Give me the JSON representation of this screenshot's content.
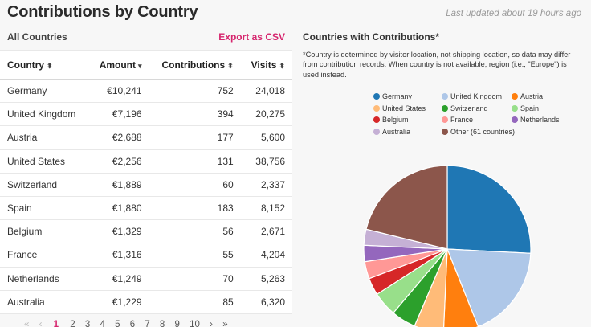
{
  "header": {
    "title": "Contributions by Country",
    "updated": "Last updated about 19 hours ago"
  },
  "table_panel": {
    "title": "All Countries",
    "export_label": "Export as CSV",
    "columns": [
      {
        "label": "Country",
        "sort_icon": "⬍"
      },
      {
        "label": "Amount",
        "sort_icon": "▾"
      },
      {
        "label": "Contributions",
        "sort_icon": "⬍"
      },
      {
        "label": "Visits",
        "sort_icon": "⬍"
      }
    ],
    "rows": [
      {
        "country": "Germany",
        "amount": "€10,241",
        "contributions": "752",
        "visits": "24,018"
      },
      {
        "country": "United Kingdom",
        "amount": "€7,196",
        "contributions": "394",
        "visits": "20,275"
      },
      {
        "country": "Austria",
        "amount": "€2,688",
        "contributions": "177",
        "visits": "5,600"
      },
      {
        "country": "United States",
        "amount": "€2,256",
        "contributions": "131",
        "visits": "38,756"
      },
      {
        "country": "Switzerland",
        "amount": "€1,889",
        "contributions": "60",
        "visits": "2,337"
      },
      {
        "country": "Spain",
        "amount": "€1,880",
        "contributions": "183",
        "visits": "8,152"
      },
      {
        "country": "Belgium",
        "amount": "€1,329",
        "contributions": "56",
        "visits": "2,671"
      },
      {
        "country": "France",
        "amount": "€1,316",
        "contributions": "55",
        "visits": "4,204"
      },
      {
        "country": "Netherlands",
        "amount": "€1,249",
        "contributions": "70",
        "visits": "5,263"
      },
      {
        "country": "Australia",
        "amount": "€1,229",
        "contributions": "85",
        "visits": "6,320"
      }
    ],
    "pagination": {
      "first": "«",
      "prev": "‹",
      "pages": [
        "1",
        "2",
        "3",
        "4",
        "5",
        "6",
        "7",
        "8",
        "9",
        "10"
      ],
      "current": "1",
      "next": "›",
      "last": "»"
    }
  },
  "chart_panel": {
    "title": "Countries with Contributions*",
    "note": "*Country is determined by visitor location, not shipping location, so data may differ from contribution records. When country is not available, region (i.e., \"Europe\") is used instead."
  },
  "chart_data": {
    "type": "pie",
    "labels": [
      "Germany",
      "United Kingdom",
      "Austria",
      "United States",
      "Switzerland",
      "Spain",
      "Belgium",
      "France",
      "Netherlands",
      "Australia",
      "Other (61 countries)"
    ],
    "values": [
      10241,
      7196,
      2688,
      2256,
      1889,
      1880,
      1329,
      1316,
      1249,
      1229,
      8400
    ],
    "colors": [
      "#1f77b4",
      "#aec7e8",
      "#ff7f0e",
      "#ffbb78",
      "#2ca02c",
      "#98df8a",
      "#d62728",
      "#ff9896",
      "#9467bd",
      "#c5b0d5",
      "#8c564b"
    ],
    "legend_placement": "top"
  }
}
